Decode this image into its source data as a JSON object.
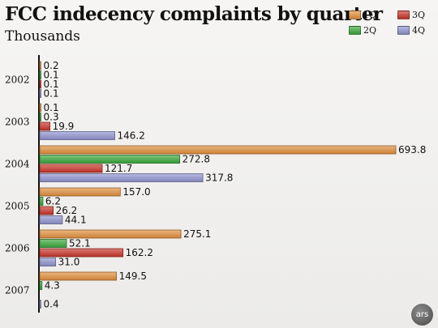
{
  "chart_data": {
    "type": "bar",
    "orientation": "horizontal",
    "title": "FCC indecency complaints by quarter",
    "subtitle": "Thousands",
    "categories": [
      "2002",
      "2003",
      "2004",
      "2005",
      "2006",
      "2007"
    ],
    "series": [
      {
        "name": "1Q",
        "color": "#e08f3c",
        "values": [
          0.2,
          0.1,
          693.8,
          157.0,
          275.1,
          149.5
        ],
        "labels": [
          "0.2",
          "0.1",
          "693.8",
          "157.0",
          "275.1",
          "149.5"
        ]
      },
      {
        "name": "2Q",
        "color": "#3aa83a",
        "values": [
          0.1,
          0.3,
          272.8,
          6.2,
          52.1,
          4.3
        ],
        "labels": [
          "0.1",
          "0.3",
          "272.8",
          "6.2",
          "52.1",
          "4.3"
        ]
      },
      {
        "name": "3Q",
        "color": "#c8342a",
        "values": [
          0.1,
          19.9,
          121.7,
          26.2,
          162.2,
          null
        ],
        "labels": [
          "0.1",
          "19.9",
          "121.7",
          "26.2",
          "162.2",
          ""
        ]
      },
      {
        "name": "4Q",
        "color": "#8f93cf",
        "values": [
          0.1,
          146.2,
          317.8,
          44.1,
          31.0,
          0.4
        ],
        "labels": [
          "0.1",
          "146.2",
          "317.8",
          "44.1",
          "31.0",
          "0.4"
        ]
      }
    ],
    "xlim": [
      0,
      693.8
    ],
    "grid": false,
    "legend_position": "top-right"
  },
  "logo": {
    "text": "ars"
  }
}
